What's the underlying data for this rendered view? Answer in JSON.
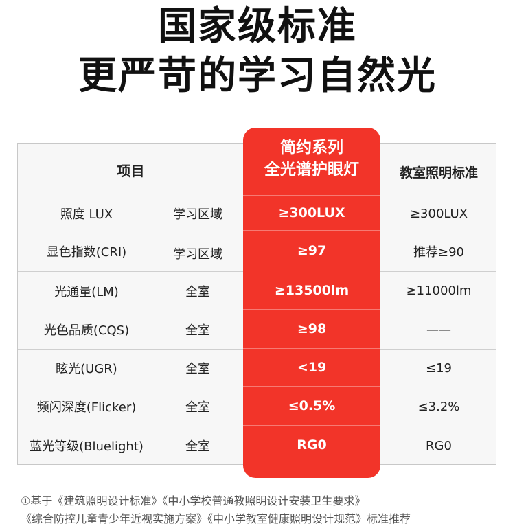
{
  "title": {
    "line1": "国家级标准",
    "line2": "更严苛的学习自然光"
  },
  "table": {
    "header": {
      "item": "项目",
      "product_line1": "简约系列",
      "product_line2": "全光谱护眼灯",
      "standard": "教室照明标准"
    },
    "rows": [
      {
        "item": "照度 LUX",
        "scope": "学习区域",
        "product": "≥300LUX",
        "standard": "≥300LUX"
      },
      {
        "item": "显色指数(CRI)",
        "scope": "学习区域",
        "product": "≥97",
        "standard": "推荐≥90"
      },
      {
        "item": "光通量(LM)",
        "scope": "全室",
        "product": "≥13500lm",
        "standard": "≥11000lm"
      },
      {
        "item": "光色品质(CQS)",
        "scope": "全室",
        "product": "≥98",
        "standard": "——"
      },
      {
        "item": "眩光(UGR)",
        "scope": "全室",
        "product": "<19",
        "standard": "≤19"
      },
      {
        "item": "频闪深度(Flicker)",
        "scope": "全室",
        "product": "≤0.5%",
        "standard": "≤3.2%"
      },
      {
        "item": "蓝光等级(Bluelight)",
        "scope": "全室",
        "product": "RG0",
        "standard": "RG0"
      }
    ]
  },
  "footnote": {
    "line1": "①基于《建筑照明设计标准》《中小学校普通教照明设计安装卫生要求》",
    "line2": "《综合防控儿童青少年近视实施方案》《中小学教室健康照明设计规范》标准推荐"
  },
  "colors": {
    "accent": "#f23429",
    "table_bg": "#f7f7f7",
    "border": "#c8c8c8"
  }
}
